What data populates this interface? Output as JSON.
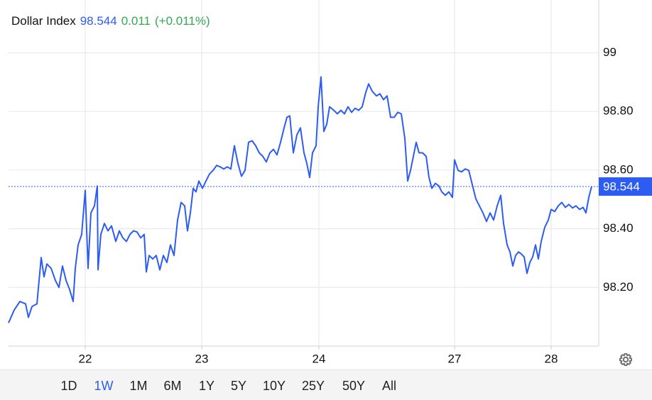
{
  "quote": {
    "name": "Dollar Index",
    "price": 98.544,
    "change": 0.011,
    "change_percent": "(+0.011%)"
  },
  "chart_data": {
    "type": "line",
    "color": "#2c5cf2",
    "grid": true,
    "x": [
      0,
      8,
      16,
      24,
      28,
      33,
      40,
      46,
      50,
      54,
      60,
      66,
      71,
      76,
      81,
      86,
      91,
      94,
      98,
      103,
      108,
      112,
      116,
      121,
      125,
      126,
      130,
      135,
      140,
      145,
      151,
      156,
      161,
      166,
      171,
      176,
      181,
      186,
      191,
      194,
      198,
      203,
      208,
      213,
      218,
      223,
      228,
      233,
      238,
      243,
      248,
      252,
      256,
      260,
      264,
      268,
      273,
      278,
      283,
      288,
      293,
      298,
      303,
      308,
      313,
      318,
      323,
      328,
      333,
      338,
      343,
      348,
      353,
      358,
      363,
      368,
      373,
      378,
      383,
      388,
      392,
      396,
      401,
      406,
      411,
      416,
      420,
      424,
      428,
      433,
      436,
      440,
      444,
      448,
      452,
      458,
      463,
      468,
      473,
      478,
      483,
      488,
      493,
      498,
      503,
      507,
      512,
      518,
      523,
      528,
      533,
      538,
      543,
      548,
      553,
      558,
      562,
      566,
      570,
      574,
      578,
      583,
      588,
      592,
      596,
      601,
      606,
      610,
      615,
      620,
      625,
      628,
      633,
      638,
      643,
      648,
      653,
      658,
      663,
      668,
      673,
      678,
      683,
      688,
      693,
      697,
      702,
      706,
      710,
      714,
      718,
      722,
      726,
      730,
      734,
      738,
      742,
      746,
      750,
      755,
      760,
      764,
      769,
      774,
      779,
      784,
      789,
      794,
      799,
      804,
      809,
      813,
      817,
      821
    ],
    "values": [
      98.079,
      98.123,
      98.152,
      98.144,
      98.098,
      98.135,
      98.144,
      98.302,
      98.236,
      98.28,
      98.265,
      98.224,
      98.2,
      98.273,
      98.224,
      98.193,
      98.152,
      98.265,
      98.345,
      98.381,
      98.531,
      98.265,
      98.454,
      98.478,
      98.546,
      98.26,
      98.381,
      98.418,
      98.393,
      98.41,
      98.357,
      98.393,
      98.369,
      98.357,
      98.381,
      98.393,
      98.389,
      98.369,
      98.381,
      98.253,
      98.309,
      98.297,
      98.309,
      98.26,
      98.309,
      98.285,
      98.345,
      98.309,
      98.43,
      98.49,
      98.478,
      98.393,
      98.454,
      98.538,
      98.526,
      98.563,
      98.538,
      98.563,
      98.587,
      98.599,
      98.616,
      98.611,
      98.604,
      98.611,
      98.604,
      98.683,
      98.623,
      98.579,
      98.599,
      98.695,
      98.7,
      98.683,
      98.659,
      98.647,
      98.628,
      98.659,
      98.671,
      98.652,
      98.695,
      98.744,
      98.78,
      98.785,
      98.659,
      98.72,
      98.744,
      98.659,
      98.623,
      98.575,
      98.659,
      98.683,
      98.816,
      98.918,
      98.732,
      98.756,
      98.816,
      98.804,
      98.792,
      98.804,
      98.792,
      98.816,
      98.797,
      98.811,
      98.804,
      98.816,
      98.865,
      98.894,
      98.869,
      98.853,
      98.86,
      98.84,
      98.853,
      98.78,
      98.78,
      98.797,
      98.792,
      98.708,
      98.563,
      98.599,
      98.647,
      98.695,
      98.659,
      98.659,
      98.647,
      98.575,
      98.538,
      98.555,
      98.546,
      98.526,
      98.514,
      98.526,
      98.507,
      98.635,
      98.599,
      98.594,
      98.604,
      98.599,
      98.55,
      98.502,
      98.478,
      98.454,
      98.425,
      98.454,
      98.43,
      98.478,
      98.514,
      98.418,
      98.345,
      98.321,
      98.273,
      98.309,
      98.321,
      98.314,
      98.304,
      98.248,
      98.285,
      98.304,
      98.345,
      98.297,
      98.357,
      98.405,
      98.43,
      98.466,
      98.459,
      98.478,
      98.49,
      98.473,
      98.483,
      98.471,
      98.478,
      98.466,
      98.473,
      98.454,
      98.507,
      98.544
    ],
    "xlim": [
      0,
      831
    ],
    "ylim": [
      98.0,
      99.18
    ],
    "xticks": [
      {
        "value": 108,
        "label": "22"
      },
      {
        "value": 272,
        "label": "23"
      },
      {
        "value": 437,
        "label": "24"
      },
      {
        "value": 628,
        "label": "27"
      },
      {
        "value": 764,
        "label": "28"
      }
    ],
    "yticks": [
      {
        "value": 98.2,
        "label": "98.20"
      },
      {
        "value": 98.4,
        "label": "98.40"
      },
      {
        "value": 98.6,
        "label": "98.60"
      },
      {
        "value": 98.8,
        "label": "98.80"
      },
      99
    ]
  },
  "ranges": [
    "1D",
    "1W",
    "1M",
    "6M",
    "1Y",
    "5Y",
    "10Y",
    "25Y",
    "50Y",
    "All"
  ]
}
